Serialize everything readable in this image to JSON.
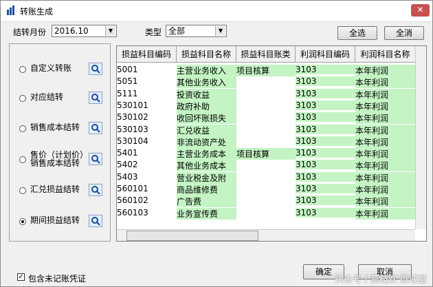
{
  "window": {
    "title": "转账生成"
  },
  "filters": {
    "month_label": "结转月份",
    "month_value": "2016.10",
    "type_label": "类型",
    "type_value": "全部"
  },
  "buttons": {
    "select_all": "全选",
    "clear_all": "全消",
    "ok": "确定",
    "cancel": "取消"
  },
  "options": [
    "自定义转账",
    "对应结转",
    "销售成本结转",
    "售价（计划价）销售成本结转",
    "汇兑损益结转",
    "期间损益结转"
  ],
  "selected_option": 5,
  "table": {
    "columns": [
      "损益科目编码",
      "损益科目名称",
      "损益科目账类",
      "利润科目编码",
      "利润科目名称"
    ],
    "rows": [
      [
        "5001",
        "主营业务收入",
        "项目核算",
        "3103",
        "本年利润"
      ],
      [
        "5051",
        "其他业务收入",
        null,
        "3103",
        "本年利润"
      ],
      [
        "5111",
        "投资收益",
        null,
        "3103",
        "本年利润"
      ],
      [
        "530101",
        "政府补助",
        null,
        "3103",
        "本年利润"
      ],
      [
        "530102",
        "收回坏账损失",
        null,
        "3103",
        "本年利润"
      ],
      [
        "530103",
        "汇兑收益",
        null,
        "3103",
        "本年利润"
      ],
      [
        "530104",
        "非流动资产处",
        null,
        "3103",
        "本年利润"
      ],
      [
        "5401",
        "主营业务成本",
        "项目核算",
        "3103",
        "本年利润"
      ],
      [
        "5402",
        "其他业务成本",
        null,
        "3103",
        "本年利润"
      ],
      [
        "5403",
        "营业税金及附",
        null,
        "3103",
        "本年利润"
      ],
      [
        "560101",
        "商品维修费",
        null,
        "3103",
        "本年利润"
      ],
      [
        "560102",
        "广告费",
        null,
        "3103",
        "本年利润"
      ],
      [
        "560103",
        "业务宣传费",
        null,
        "3103",
        "本年利润"
      ]
    ]
  },
  "include_unposted": {
    "label": "包含未记账凭证",
    "checked": true
  },
  "watermark": "头条号 / 燕枝欢 微课堂"
}
